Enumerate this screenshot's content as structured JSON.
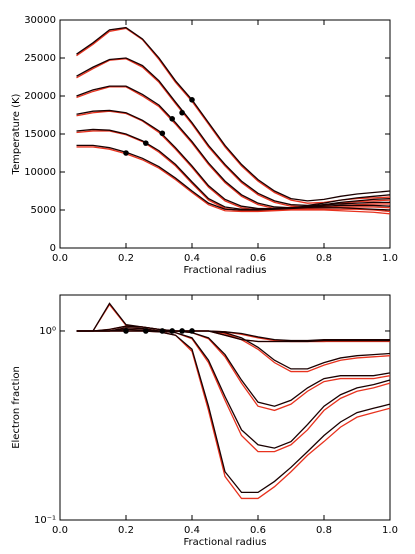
{
  "chart_data": [
    {
      "type": "line",
      "xlabel": "Fractional radius",
      "ylabel": "Temperature (K)",
      "xlim": [
        0,
        1
      ],
      "ylim": [
        0,
        30000
      ],
      "xticks": [
        {
          "value": 0,
          "label": "0.0"
        },
        {
          "value": 0.2,
          "label": "0.2"
        },
        {
          "value": 0.4,
          "label": "0.4"
        },
        {
          "value": 0.6,
          "label": "0.6"
        },
        {
          "value": 0.8,
          "label": "0.8"
        },
        {
          "value": 1,
          "label": "1.0"
        }
      ],
      "yticks": [
        0,
        5000,
        10000,
        15000,
        20000,
        25000,
        30000
      ],
      "x": [
        0.05,
        0.1,
        0.15,
        0.2,
        0.25,
        0.3,
        0.35,
        0.4,
        0.45,
        0.5,
        0.55,
        0.6,
        0.65,
        0.7,
        0.75,
        0.8,
        0.85,
        0.9,
        0.95,
        1.0
      ],
      "series": [
        {
          "color": "#e8321e",
          "values": [
            25300,
            26800,
            28500,
            28900,
            27400,
            24800,
            21800,
            19300,
            16300,
            13300,
            10800,
            8800,
            7300,
            6300,
            5900,
            6000,
            6300,
            6500,
            6600,
            6700
          ]
        },
        {
          "color": "#e8321e",
          "values": [
            22400,
            23600,
            24700,
            24900,
            23800,
            21800,
            19000,
            16300,
            13300,
            10800,
            8600,
            7000,
            6000,
            5500,
            5400,
            5600,
            5900,
            6100,
            6200,
            6300
          ]
        },
        {
          "color": "#e8321e",
          "values": [
            19800,
            20600,
            21200,
            21200,
            20000,
            18600,
            16300,
            13800,
            11000,
            8600,
            6800,
            5700,
            5200,
            5100,
            5200,
            5400,
            5600,
            5700,
            5800,
            5800
          ]
        },
        {
          "color": "#e8321e",
          "values": [
            17400,
            17800,
            18000,
            17700,
            16700,
            15200,
            13000,
            10600,
            8000,
            6200,
            5300,
            5000,
            5000,
            5100,
            5200,
            5300,
            5400,
            5400,
            5400,
            5300
          ]
        },
        {
          "color": "#e8321e",
          "values": [
            15200,
            15400,
            15400,
            14900,
            14000,
            12600,
            10800,
            8500,
            6300,
            5200,
            4900,
            4900,
            5000,
            5100,
            5100,
            5100,
            5100,
            5100,
            5000,
            4800
          ]
        },
        {
          "color": "#e8321e",
          "values": [
            13300,
            13300,
            13000,
            12400,
            11600,
            10500,
            9000,
            7300,
            5700,
            4900,
            4800,
            4800,
            4900,
            5000,
            5000,
            5000,
            4900,
            4800,
            4700,
            4500
          ]
        },
        {
          "color": "#1a0000",
          "values": [
            25500,
            27000,
            28700,
            29000,
            27500,
            25000,
            22000,
            19500,
            16500,
            13500,
            11000,
            9000,
            7500,
            6500,
            6200,
            6400,
            6800,
            7100,
            7300,
            7500
          ]
        },
        {
          "color": "#1a0000",
          "values": [
            22600,
            23800,
            24800,
            25000,
            24000,
            22000,
            19200,
            16500,
            13500,
            11000,
            8800,
            7200,
            6200,
            5700,
            5600,
            5900,
            6300,
            6600,
            6800,
            7000
          ]
        },
        {
          "color": "#1a0000",
          "values": [
            20000,
            20800,
            21300,
            21300,
            20200,
            18800,
            16500,
            14000,
            11200,
            8800,
            7000,
            5900,
            5400,
            5300,
            5400,
            5700,
            6000,
            6200,
            6400,
            6500
          ]
        },
        {
          "color": "#1a0000",
          "values": [
            17600,
            18000,
            18100,
            17800,
            16800,
            15400,
            13200,
            10800,
            8200,
            6400,
            5500,
            5200,
            5200,
            5300,
            5500,
            5700,
            5800,
            5900,
            6000,
            6000
          ]
        },
        {
          "color": "#1a0000",
          "values": [
            15400,
            15600,
            15500,
            15000,
            14100,
            12800,
            11000,
            8700,
            6500,
            5400,
            5100,
            5100,
            5200,
            5300,
            5400,
            5500,
            5600,
            5600,
            5600,
            5500
          ]
        },
        {
          "color": "#1a0000",
          "values": [
            13500,
            13500,
            13200,
            12600,
            11800,
            10700,
            9200,
            7500,
            5900,
            5100,
            5000,
            5000,
            5100,
            5200,
            5300,
            5300,
            5300,
            5200,
            5100,
            5000
          ]
        }
      ],
      "points": {
        "color": "#000000",
        "x": [
          0.4,
          0.37,
          0.34,
          0.31,
          0.26,
          0.2
        ],
        "values": [
          19500,
          17800,
          17000,
          15100,
          13800,
          12500
        ]
      }
    },
    {
      "type": "line",
      "xlabel": "Fractional radius",
      "ylabel": "Electron fraction",
      "yscale": "log",
      "xlim": [
        0,
        1
      ],
      "ylim": [
        0.1,
        1.55
      ],
      "xticks": [
        {
          "value": 0,
          "label": "0.0"
        },
        {
          "value": 0.2,
          "label": "0.2"
        },
        {
          "value": 0.4,
          "label": "0.4"
        },
        {
          "value": 0.6,
          "label": "0.6"
        },
        {
          "value": 0.8,
          "label": "0.8"
        },
        {
          "value": 1,
          "label": "1.0"
        }
      ],
      "yticks": [
        {
          "value": 0.1,
          "label": "10⁻¹"
        },
        {
          "value": 1,
          "label": "10⁰"
        }
      ],
      "x": [
        0.05,
        0.1,
        0.15,
        0.2,
        0.25,
        0.3,
        0.35,
        0.4,
        0.45,
        0.5,
        0.55,
        0.6,
        0.65,
        0.7,
        0.75,
        0.8,
        0.85,
        0.9,
        0.95,
        1.0
      ],
      "series": [
        {
          "color": "#e8321e",
          "values": [
            1,
            1,
            1.38,
            1.07,
            1.05,
            1.02,
            1.0,
            1.0,
            1.0,
            0.99,
            0.96,
            0.92,
            0.89,
            0.88,
            0.88,
            0.88,
            0.89,
            0.89,
            0.89,
            0.89
          ]
        },
        {
          "color": "#e8321e",
          "values": [
            1,
            1,
            1.02,
            1.06,
            1.05,
            1.02,
            1.0,
            1.0,
            1.0,
            0.97,
            0.9,
            0.8,
            0.68,
            0.61,
            0.61,
            0.66,
            0.7,
            0.72,
            0.73,
            0.74
          ]
        },
        {
          "color": "#e8321e",
          "values": [
            1,
            1,
            1.0,
            1.04,
            1.03,
            1.0,
            1.0,
            0.98,
            0.91,
            0.73,
            0.53,
            0.4,
            0.38,
            0.41,
            0.48,
            0.54,
            0.56,
            0.56,
            0.56,
            0.58
          ]
        },
        {
          "color": "#e8321e",
          "values": [
            1,
            1,
            1,
            1.02,
            1.01,
            1.0,
            0.98,
            0.91,
            0.68,
            0.43,
            0.28,
            0.23,
            0.23,
            0.25,
            0.3,
            0.38,
            0.44,
            0.48,
            0.5,
            0.53
          ]
        },
        {
          "color": "#e8321e",
          "values": [
            1,
            1,
            1,
            1,
            1,
            0.99,
            0.95,
            0.78,
            0.38,
            0.17,
            0.13,
            0.13,
            0.15,
            0.18,
            0.22,
            0.26,
            0.31,
            0.35,
            0.37,
            0.39
          ]
        },
        {
          "color": "#e8321e",
          "values": [
            1,
            1,
            1,
            1,
            1,
            1,
            1,
            1,
            1,
            0.95,
            0.9,
            0.88,
            0.88,
            0.88,
            0.88,
            0.88,
            0.88,
            0.88,
            0.88,
            0.88
          ]
        },
        {
          "color": "#1a0000",
          "values": [
            1,
            1,
            1.4,
            1.08,
            1.05,
            1.02,
            1.0,
            1.0,
            1.0,
            0.99,
            0.97,
            0.93,
            0.9,
            0.89,
            0.89,
            0.9,
            0.9,
            0.9,
            0.9,
            0.9
          ]
        },
        {
          "color": "#1a0000",
          "values": [
            1,
            1,
            1.02,
            1.06,
            1.05,
            1.02,
            1.0,
            1.0,
            1.0,
            0.98,
            0.92,
            0.82,
            0.7,
            0.63,
            0.63,
            0.68,
            0.72,
            0.74,
            0.75,
            0.76
          ]
        },
        {
          "color": "#1a0000",
          "values": [
            1,
            1,
            1.0,
            1.04,
            1.03,
            1.0,
            1.0,
            0.98,
            0.92,
            0.75,
            0.55,
            0.42,
            0.4,
            0.43,
            0.5,
            0.56,
            0.58,
            0.58,
            0.58,
            0.6
          ]
        },
        {
          "color": "#1a0000",
          "values": [
            1,
            1,
            1.0,
            1.02,
            1.01,
            1.0,
            0.98,
            0.92,
            0.7,
            0.45,
            0.3,
            0.25,
            0.24,
            0.26,
            0.32,
            0.4,
            0.46,
            0.5,
            0.52,
            0.55
          ]
        },
        {
          "color": "#1a0000",
          "values": [
            1,
            1,
            1.0,
            1.0,
            1.0,
            0.99,
            0.95,
            0.8,
            0.4,
            0.18,
            0.14,
            0.14,
            0.16,
            0.19,
            0.23,
            0.28,
            0.33,
            0.37,
            0.39,
            0.41
          ]
        },
        {
          "color": "#1a0000",
          "values": [
            1,
            1,
            1,
            1,
            1,
            1,
            1,
            1,
            1,
            0.95,
            0.9,
            0.88,
            0.88,
            0.88,
            0.88,
            0.89,
            0.89,
            0.89,
            0.89,
            0.89
          ]
        }
      ],
      "points": {
        "color": "#000000",
        "x": [
          0.2,
          0.26,
          0.31,
          0.34,
          0.37,
          0.4
        ],
        "values": [
          1,
          1,
          1,
          1,
          1,
          1
        ]
      }
    }
  ]
}
